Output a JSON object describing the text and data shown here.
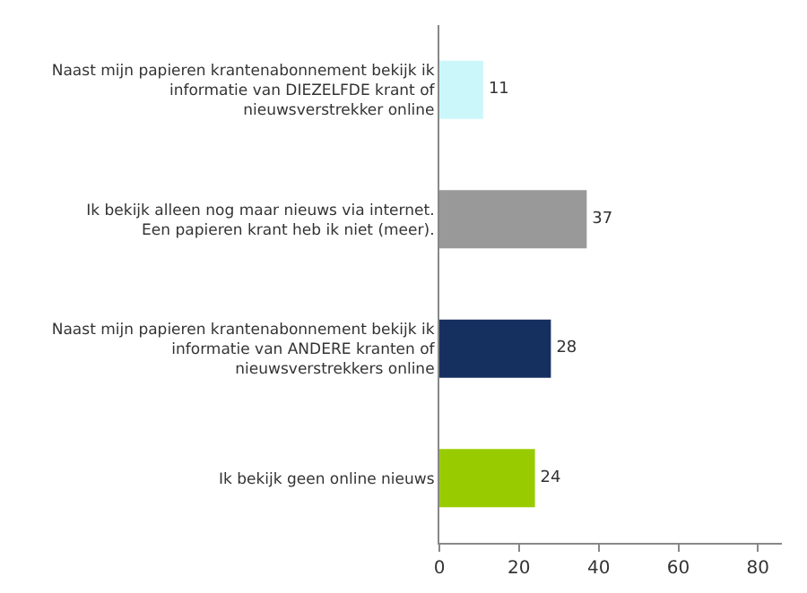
{
  "chart_data": {
    "type": "bar",
    "orientation": "horizontal",
    "categories": [
      "Naast mijn papieren krantenabonnement bekijk ik informatie van DIEZELFDE krant of nieuwsverstrekker online",
      "Ik bekijk alleen nog maar nieuws via internet. Een papieren krant heb ik niet (meer).",
      "Naast mijn papieren krantenabonnement bekijk ik informatie van ANDERE kranten of nieuwsverstrekkers online",
      "Ik bekijk geen online nieuws"
    ],
    "values": [
      11,
      37,
      28,
      24
    ],
    "colors": [
      "#ccf7fa",
      "#999999",
      "#15305e",
      "#99cc00"
    ],
    "xlim": [
      0,
      86
    ],
    "xticks": [
      0,
      20,
      40,
      60,
      80
    ],
    "data_labels": true,
    "grid": false
  }
}
